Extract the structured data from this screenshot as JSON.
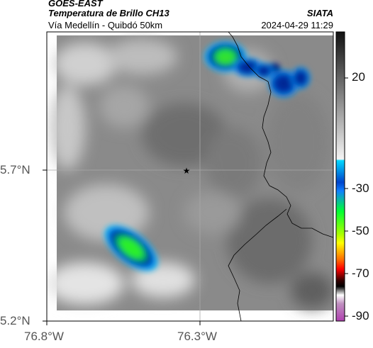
{
  "header": {
    "source": "GOES-EAST",
    "product": "Temperatura de Brillo CH13",
    "route": "Vía Medellín - Quibdó 50km",
    "agency": "SIATA",
    "timestamp": "2024-04-29 11:29"
  },
  "map": {
    "lat_labels": [
      "5.7°N",
      "5.2°N"
    ],
    "lon_labels": [
      "76.8°W",
      "76.3°W"
    ],
    "marker_icon": "star-icon",
    "background_color": "#8a8a8a",
    "border_color": "#000000"
  },
  "colorbar": {
    "ticks": [
      "20",
      "-30",
      "-50",
      "-70",
      "-90"
    ],
    "stops": [
      "#1a1a1a",
      "#ffffff",
      "#00c8ff",
      "#0033cc",
      "#00ff33",
      "#ffff00",
      "#ff0000",
      "#000000",
      "#ffffff",
      "#aa33aa"
    ]
  }
}
